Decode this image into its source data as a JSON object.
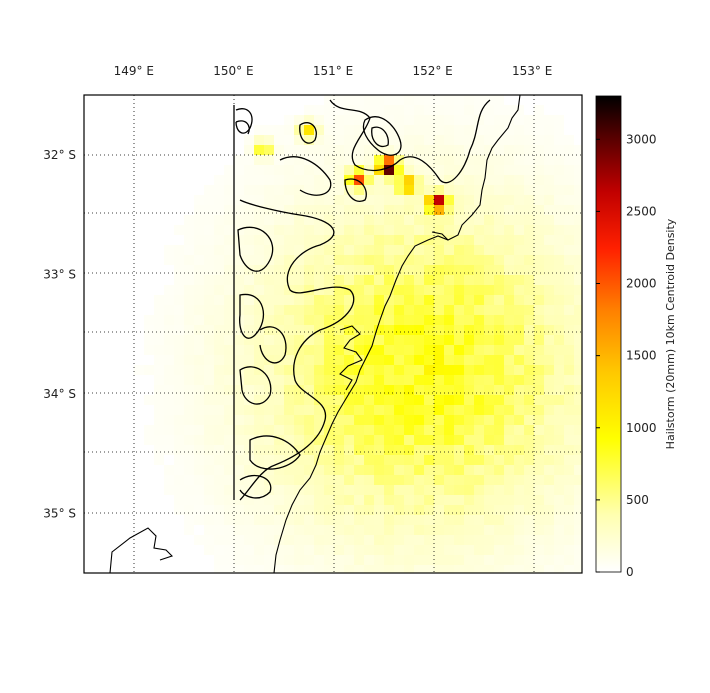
{
  "chart_data": {
    "type": "heatmap",
    "title": "",
    "projection": "map",
    "x_ticks": [
      {
        "value": 149,
        "label": "149",
        "hemisphere": "E"
      },
      {
        "value": 150,
        "label": "150",
        "hemisphere": "E"
      },
      {
        "value": 151,
        "label": "151",
        "hemisphere": "E"
      },
      {
        "value": 152,
        "label": "152",
        "hemisphere": "E"
      },
      {
        "value": 153,
        "label": "153",
        "hemisphere": "E"
      }
    ],
    "y_ticks": [
      {
        "value": -32,
        "label": "32",
        "hemisphere": "S"
      },
      {
        "value": -33,
        "label": "33",
        "hemisphere": "S"
      },
      {
        "value": -34,
        "label": "34",
        "hemisphere": "S"
      },
      {
        "value": -35,
        "label": "35",
        "hemisphere": "S"
      }
    ],
    "degree_symbol": "°",
    "xlim": [
      148.5,
      153.5
    ],
    "ylim": [
      -35.5,
      -31.5
    ],
    "grid": true,
    "colormap": "hot (reversed)",
    "colorbar": {
      "label": "Hailstorm (20mm) 10km Centroid Density",
      "range": [
        0,
        3300
      ],
      "ticks": [
        "0",
        "500",
        "1000",
        "1500",
        "2000",
        "2500",
        "3000"
      ],
      "tick_values": [
        0,
        500,
        1000,
        1500,
        2000,
        2500,
        3000
      ]
    },
    "density_field": {
      "background_center": [
        151.9,
        -33.8
      ],
      "background_peak": 850,
      "hotspots": [
        {
          "lon": 151.55,
          "lat": -32.1,
          "value": 3300
        },
        {
          "lon": 152.05,
          "lat": -32.4,
          "value": 2600
        },
        {
          "lon": 151.25,
          "lat": -32.2,
          "value": 1900
        },
        {
          "lon": 151.75,
          "lat": -32.25,
          "value": 1500
        },
        {
          "lon": 150.3,
          "lat": -31.95,
          "value": 900
        },
        {
          "lon": 150.75,
          "lat": -31.8,
          "value": 1100
        }
      ]
    },
    "elevation_contours": "black contour lines over western ranges",
    "coastline": "New South Wales coast"
  }
}
